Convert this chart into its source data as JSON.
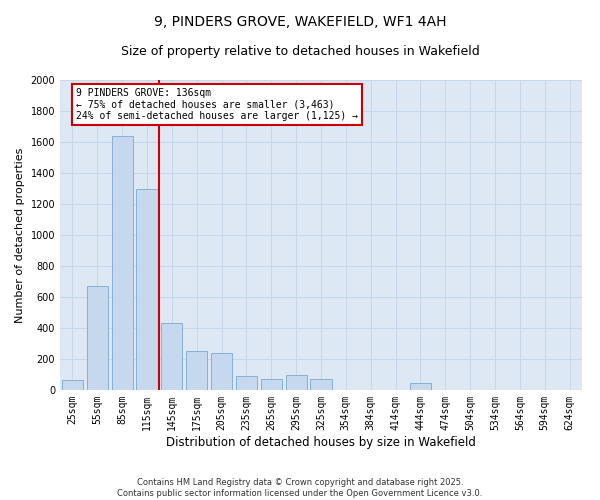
{
  "title1": "9, PINDERS GROVE, WAKEFIELD, WF1 4AH",
  "title2": "Size of property relative to detached houses in Wakefield",
  "xlabel": "Distribution of detached houses by size in Wakefield",
  "ylabel": "Number of detached properties",
  "categories": [
    "25sqm",
    "55sqm",
    "85sqm",
    "115sqm",
    "145sqm",
    "175sqm",
    "205sqm",
    "235sqm",
    "265sqm",
    "295sqm",
    "325sqm",
    "354sqm",
    "384sqm",
    "414sqm",
    "444sqm",
    "474sqm",
    "504sqm",
    "534sqm",
    "564sqm",
    "594sqm",
    "624sqm"
  ],
  "values": [
    65,
    670,
    1640,
    1300,
    430,
    250,
    240,
    90,
    70,
    100,
    70,
    0,
    0,
    0,
    45,
    0,
    0,
    0,
    0,
    0,
    0
  ],
  "bar_color": "#c5d8ee",
  "bar_edge_color": "#7aaad0",
  "vline_color": "#cc0000",
  "annotation_text": "9 PINDERS GROVE: 136sqm\n← 75% of detached houses are smaller (3,463)\n24% of semi-detached houses are larger (1,125) →",
  "annotation_box_color": "#cc0000",
  "ylim": [
    0,
    2000
  ],
  "yticks": [
    0,
    200,
    400,
    600,
    800,
    1000,
    1200,
    1400,
    1600,
    1800,
    2000
  ],
  "grid_color": "#c8d8ea",
  "background_color": "#dde8f4",
  "footer": "Contains HM Land Registry data © Crown copyright and database right 2025.\nContains public sector information licensed under the Open Government Licence v3.0.",
  "title_fontsize": 10,
  "subtitle_fontsize": 9,
  "tick_fontsize": 7,
  "xlabel_fontsize": 8.5,
  "ylabel_fontsize": 8
}
